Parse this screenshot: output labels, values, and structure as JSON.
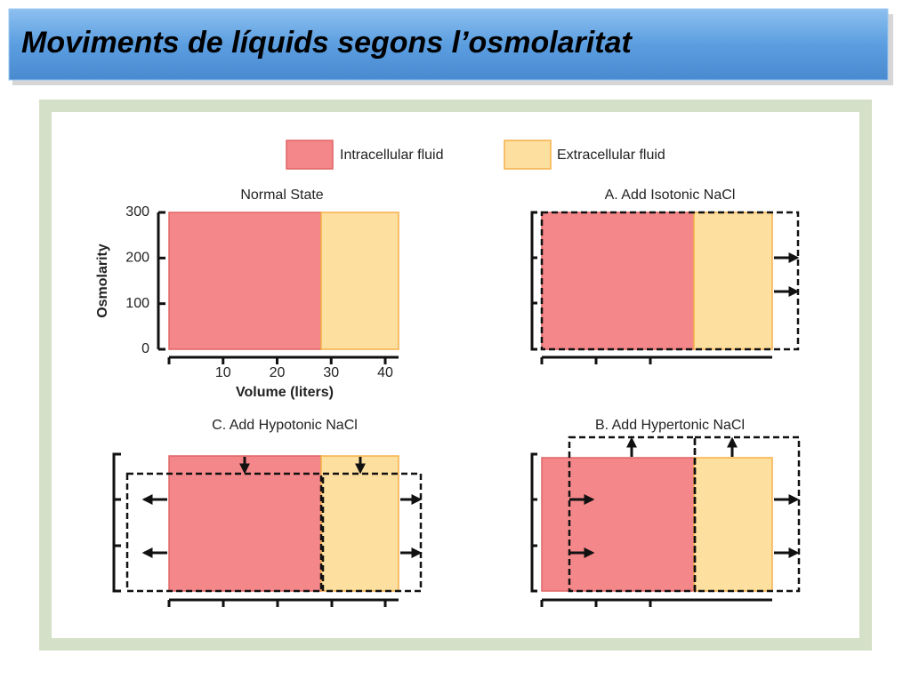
{
  "title": "Moviments de líquids segons l’osmolaritat",
  "legend": [
    "Intracellular fluid",
    "Extracellular fluid"
  ],
  "panels": [
    {
      "title": "Normal State",
      "ylabel": "Osmolarity",
      "xlabel": "Volume (liters)",
      "yticks": [
        0,
        100,
        200,
        300
      ],
      "xticks": [
        10,
        20,
        30,
        40
      ]
    },
    {
      "title": "A. Add Isotonic NaCl"
    },
    {
      "title": "C. Add Hypotonic NaCl"
    },
    {
      "title": "B. Add Hypertonic NaCl"
    }
  ]
}
